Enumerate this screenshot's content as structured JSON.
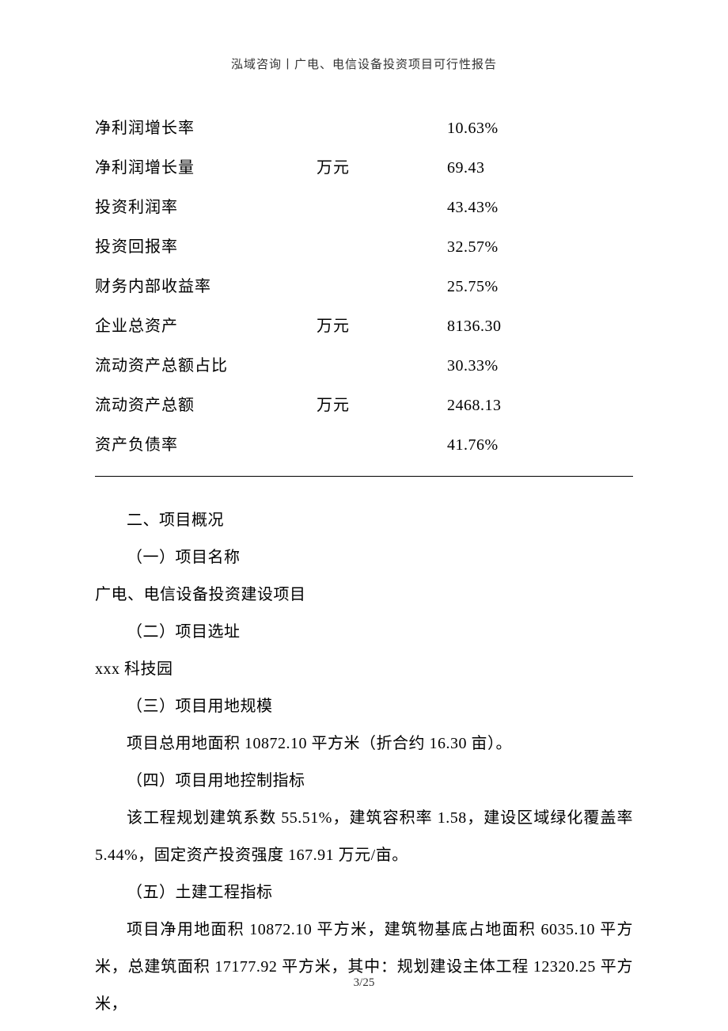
{
  "header": {
    "text": "泓域咨询丨广电、电信设备投资项目可行性报告"
  },
  "table": {
    "rows": [
      {
        "label": "净利润增长率",
        "unit": "",
        "value": "10.63%"
      },
      {
        "label": "净利润增长量",
        "unit": "万元",
        "value": "69.43"
      },
      {
        "label": "投资利润率",
        "unit": "",
        "value": "43.43%"
      },
      {
        "label": "投资回报率",
        "unit": "",
        "value": "32.57%"
      },
      {
        "label": "财务内部收益率",
        "unit": "",
        "value": "25.75%"
      },
      {
        "label": "企业总资产",
        "unit": "万元",
        "value": "8136.30"
      },
      {
        "label": "流动资产总额占比",
        "unit": "",
        "value": "30.33%"
      },
      {
        "label": "流动资产总额",
        "unit": "万元",
        "value": "2468.13"
      },
      {
        "label": "资产负债率",
        "unit": "",
        "value": "41.76%"
      }
    ]
  },
  "content": {
    "section_heading": "二、项目概况",
    "s1_heading": "（一）项目名称",
    "s1_body": "广电、电信设备投资建设项目",
    "s2_heading": "（二）项目选址",
    "s2_body": "xxx 科技园",
    "s3_heading": "（三）项目用地规模",
    "s3_body": "项目总用地面积 10872.10 平方米（折合约 16.30 亩）。",
    "s4_heading": "（四）项目用地控制指标",
    "s4_body": "该工程规划建筑系数 55.51%，建筑容积率 1.58，建设区域绿化覆盖率5.44%，固定资产投资强度 167.91 万元/亩。",
    "s5_heading": "（五）土建工程指标",
    "s5_body": "项目净用地面积 10872.10 平方米，建筑物基底占地面积 6035.10 平方米，总建筑面积 17177.92 平方米，其中：规划建设主体工程 12320.25 平方米，"
  },
  "footer": {
    "page": "3/25"
  }
}
